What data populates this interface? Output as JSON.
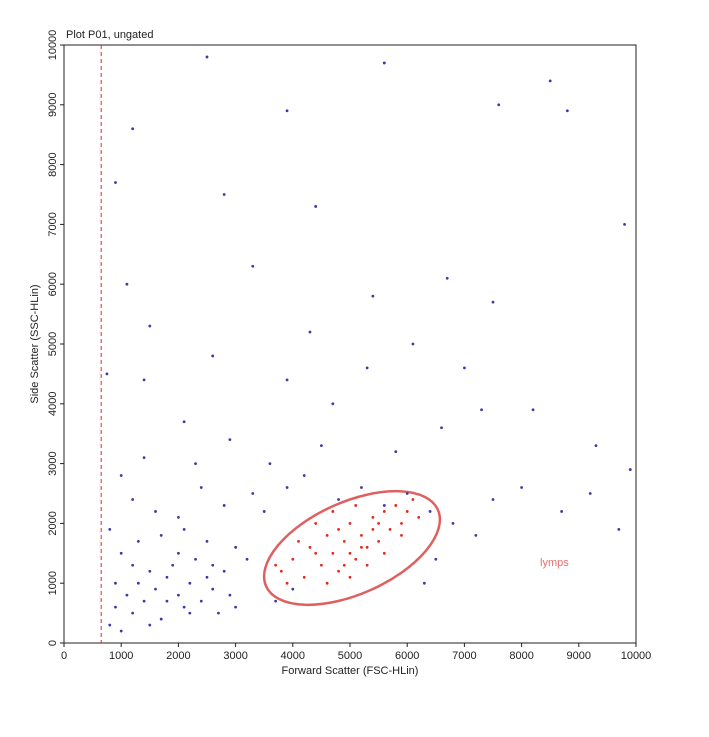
{
  "chart_data": {
    "type": "scatter",
    "title": "Plot P01, ungated",
    "xlabel": "Forward Scatter (FSC-HLin)",
    "ylabel": "Side Scatter (SSC-HLin)",
    "xlim": [
      0,
      10000
    ],
    "ylim": [
      0,
      10000
    ],
    "xticks": [
      0,
      1000,
      2000,
      3000,
      4000,
      5000,
      6000,
      7000,
      8000,
      9000,
      10000
    ],
    "yticks": [
      0,
      1000,
      2000,
      3000,
      4000,
      5000,
      6000,
      7000,
      8000,
      9000,
      10000
    ],
    "threshold_x": 650,
    "threshold_color": "#e8281c",
    "gate_label": "lymps",
    "series": [
      {
        "color": "#3a3aa8",
        "x": [
          800,
          900,
          1000,
          1100,
          1200,
          1300,
          1400,
          1500,
          1600,
          1700,
          1800,
          1900,
          2000,
          2100,
          2200,
          2300,
          2400,
          2500,
          2600,
          2700,
          2800,
          2900,
          3000,
          1500,
          2000,
          1200,
          1800,
          2200,
          2600,
          900,
          1000,
          1300,
          1700,
          2100,
          2500,
          3000,
          3200,
          3500,
          3300,
          2800,
          2400,
          2000,
          1600,
          1200,
          1000,
          1400,
          2300,
          2900,
          3600,
          3900,
          4200,
          4500,
          4800,
          5200,
          5600,
          6000,
          6400,
          6800,
          7200,
          7500,
          8000,
          8700,
          9200,
          9900,
          6500,
          6300,
          4000,
          3700,
          5800,
          6600,
          7300,
          4700,
          3900,
          5300,
          6100,
          4300,
          2600,
          1500,
          1100,
          900,
          1200,
          2800,
          3300,
          5400,
          6700,
          3900,
          7600,
          8500,
          8800,
          9800,
          5600,
          2500,
          4400,
          7500,
          8200,
          9300,
          9700,
          1400,
          2100,
          7000,
          800,
          750
        ],
        "values": [
          300,
          600,
          200,
          800,
          500,
          1000,
          700,
          1200,
          900,
          400,
          1100,
          1300,
          800,
          600,
          1000,
          1400,
          700,
          1100,
          900,
          500,
          1200,
          800,
          600,
          300,
          1500,
          1300,
          700,
          500,
          1300,
          1000,
          1500,
          1700,
          1800,
          1900,
          1700,
          1600,
          1400,
          2200,
          2500,
          2300,
          2600,
          2100,
          2200,
          2400,
          2800,
          3100,
          3000,
          3400,
          3000,
          2600,
          2800,
          3300,
          2400,
          2600,
          2300,
          2500,
          2200,
          2000,
          1800,
          2400,
          2600,
          2200,
          2500,
          2900,
          1400,
          1000,
          900,
          700,
          3200,
          3600,
          3900,
          4000,
          4400,
          4600,
          5000,
          5200,
          4800,
          5300,
          6000,
          7700,
          8600,
          7500,
          6300,
          5800,
          6100,
          8900,
          9000,
          9400,
          8900,
          7000,
          9700,
          9800,
          7300,
          5700,
          3900,
          3300,
          1900,
          4400,
          3700,
          4600,
          1900,
          4500
        ]
      },
      {
        "color": "#e8281c",
        "x": [
          3800,
          4000,
          4200,
          4300,
          4500,
          4600,
          4700,
          4800,
          4900,
          5000,
          5100,
          5200,
          5300,
          5400,
          5500,
          5600,
          5700,
          5800,
          5900,
          6000,
          6100,
          4100,
          4400,
          4700,
          5000,
          5300,
          5600,
          5900,
          6200,
          3900,
          4600,
          5100,
          4800,
          5200,
          4400,
          5500,
          5000,
          4900,
          5400,
          3700
        ],
        "values": [
          1200,
          1400,
          1100,
          1600,
          1300,
          1800,
          1500,
          1200,
          1700,
          2000,
          1400,
          1800,
          1600,
          2100,
          1700,
          2200,
          1900,
          2300,
          2000,
          2200,
          2400,
          1700,
          2000,
          2200,
          1100,
          1300,
          1500,
          1800,
          2100,
          1000,
          1000,
          2300,
          1900,
          1600,
          1500,
          2000,
          1500,
          1300,
          1900,
          1300
        ]
      }
    ]
  }
}
